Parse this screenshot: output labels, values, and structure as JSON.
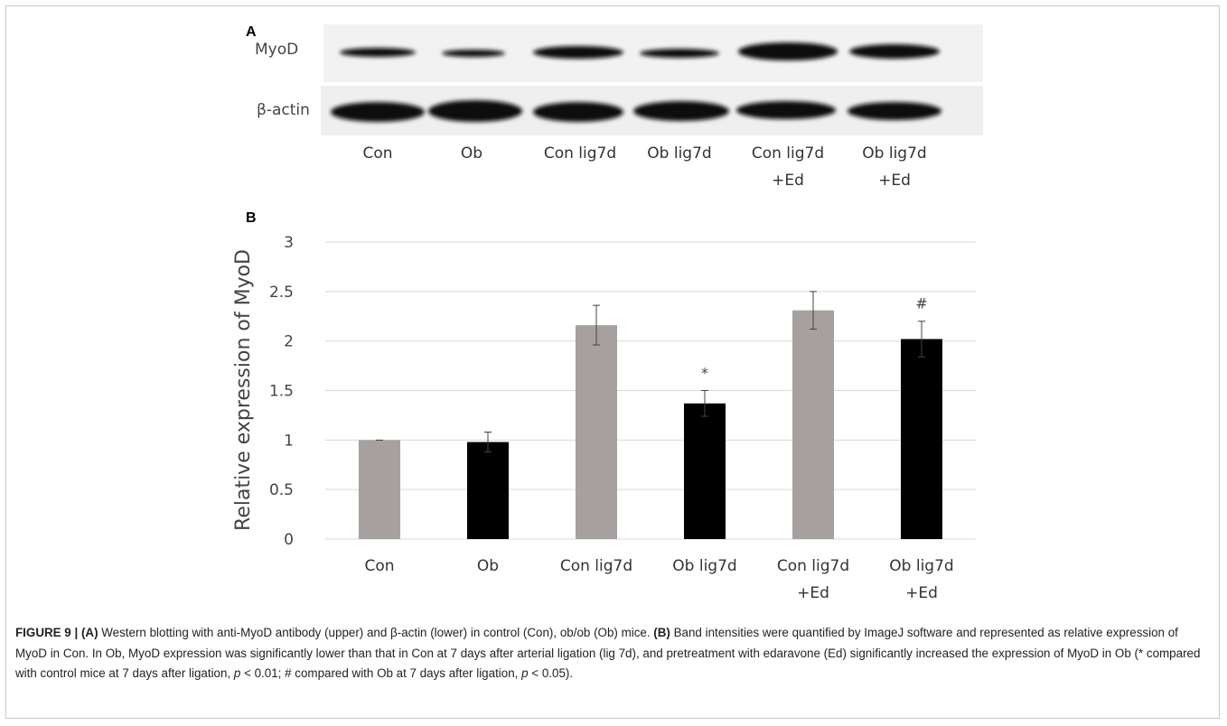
{
  "panel_a": {
    "label": "A",
    "rows": [
      "MyoD",
      "β-actin"
    ],
    "lanes": [
      "Con",
      "Ob",
      "Con lig7d",
      "Ob lig7d",
      "Con lig7d\n+Ed",
      "Ob lig7d\n+Ed"
    ]
  },
  "chart_data": {
    "type": "bar",
    "label": "B",
    "y_label": "Relative expression of MyoD",
    "categories": [
      "Con",
      "Ob",
      "Con lig7d",
      "Ob lig7d",
      "Con lig7d\n+Ed",
      "Ob lig7d\n+Ed"
    ],
    "values": [
      1,
      0.98,
      2.16,
      1.37,
      2.31,
      2.02
    ],
    "errors": [
      0,
      0.1,
      0.2,
      0.13,
      0.19,
      0.18
    ],
    "colors": [
      "#a6a19f",
      "#000000",
      "#a6a19f",
      "#000000",
      "#a6a19f",
      "#000000"
    ],
    "annotations": [
      null,
      null,
      null,
      "*",
      null,
      "#"
    ],
    "ylim": [
      0,
      3
    ],
    "yticks": [
      0,
      0.5,
      1,
      1.5,
      2,
      2.5,
      3
    ],
    "grid": true
  },
  "caption": [
    {
      "style": "bold",
      "text": "FIGURE 9 | (A)"
    },
    {
      "style": "normal",
      "text": " Western blotting with anti-MyoD antibody (upper) and β-actin (lower) in control (Con), ob/ob (Ob) mice. "
    },
    {
      "style": "bold",
      "text": "(B)"
    },
    {
      "style": "normal",
      "text": " Band intensities were quantified by ImageJ software and represented as relative expression of MyoD in Con. In Ob, MyoD expression was significantly lower than that in Con at 7 days after arterial ligation (lig 7d), and pretreatment with edaravone (Ed) significantly increased the expression of MyoD in Ob (* compared with control mice at 7 days after ligation, "
    },
    {
      "style": "italic",
      "text": "p"
    },
    {
      "style": "normal",
      "text": " < 0.01; # compared with Ob at 7 days after ligation, "
    },
    {
      "style": "italic",
      "text": "p"
    },
    {
      "style": "normal",
      "text": " < 0.05)."
    }
  ]
}
